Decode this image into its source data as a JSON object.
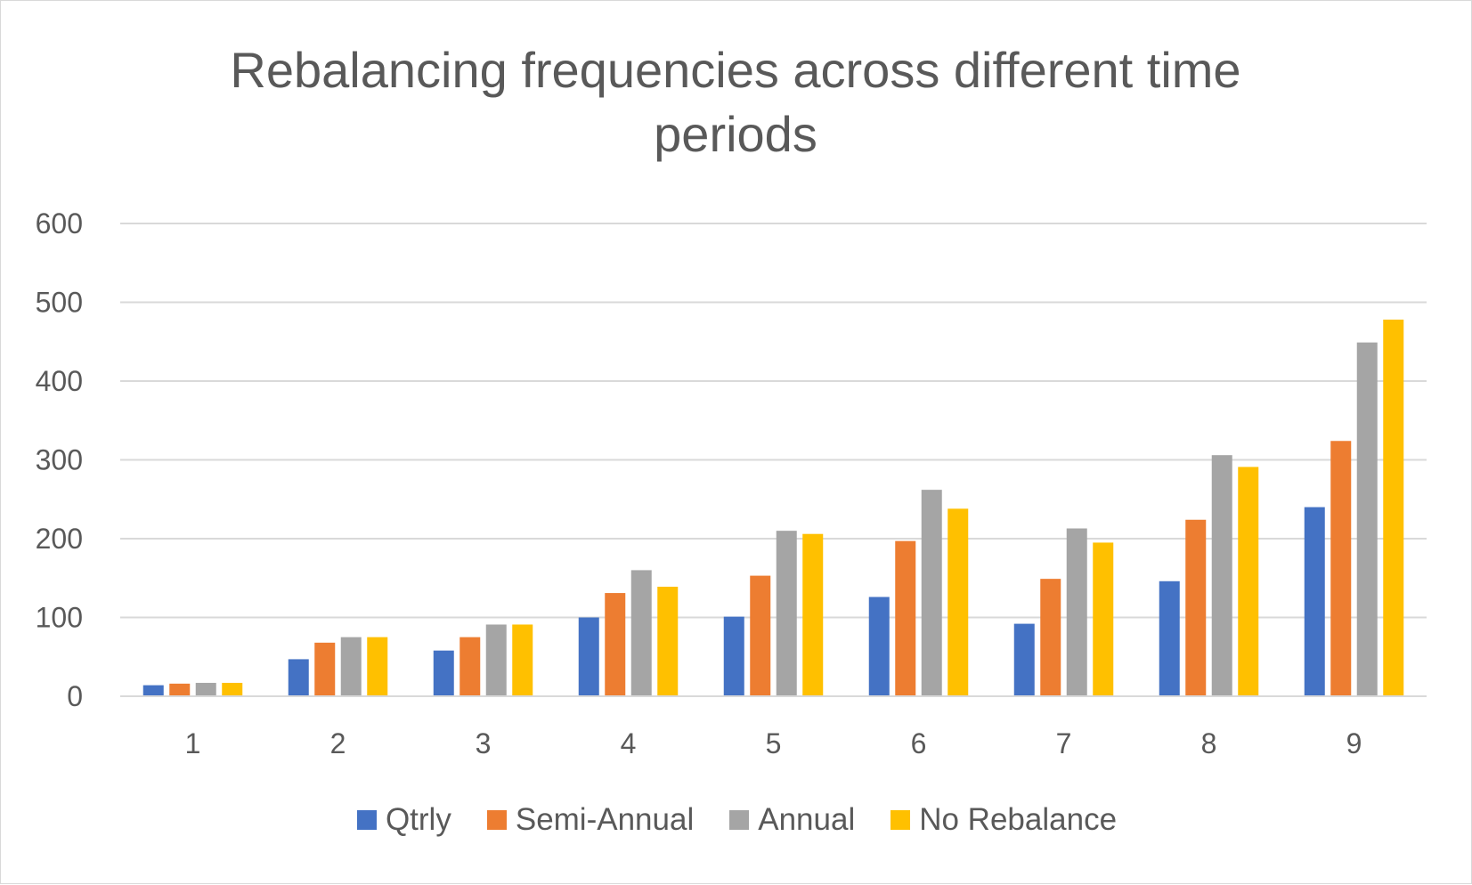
{
  "chart_data": {
    "type": "bar",
    "title": "Rebalancing frequencies across different time periods",
    "xlabel": "",
    "ylabel": "",
    "categories": [
      "1",
      "2",
      "3",
      "4",
      "5",
      "6",
      "7",
      "8",
      "9"
    ],
    "ylim": [
      0,
      600
    ],
    "yticks": [
      "0",
      "100",
      "200",
      "300",
      "400",
      "500",
      "600"
    ],
    "grid": true,
    "legend_position": "bottom",
    "series": [
      {
        "name": "Qtrly",
        "color": "#4472C4",
        "values": [
          14,
          47,
          58,
          100,
          101,
          126,
          92,
          146,
          240
        ]
      },
      {
        "name": "Semi-Annual",
        "color": "#ED7D31",
        "values": [
          16,
          68,
          75,
          131,
          153,
          197,
          149,
          224,
          324
        ]
      },
      {
        "name": "Annual",
        "color": "#A5A5A5",
        "values": [
          17,
          75,
          91,
          160,
          210,
          262,
          213,
          306,
          449
        ]
      },
      {
        "name": "No Rebalance",
        "color": "#FFC000",
        "values": [
          17,
          75,
          91,
          139,
          206,
          238,
          195,
          291,
          478
        ]
      }
    ]
  }
}
